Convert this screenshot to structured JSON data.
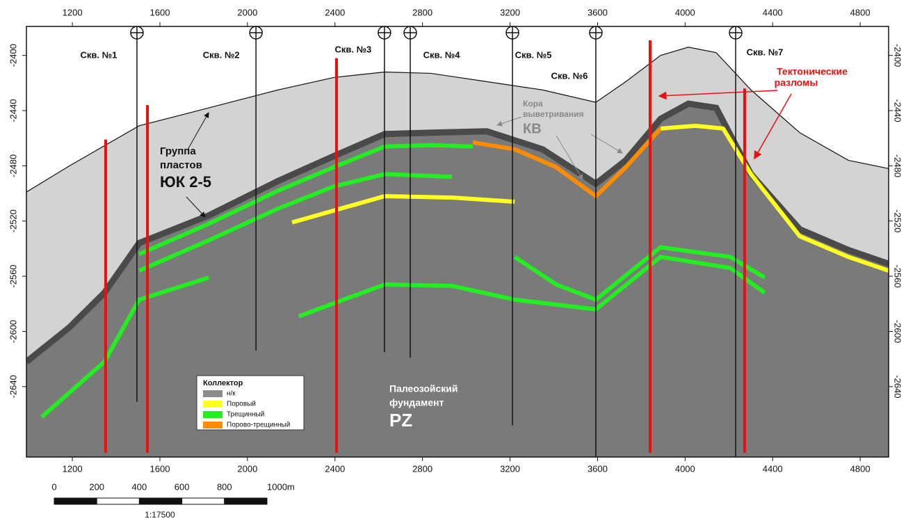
{
  "chart_data": {
    "type": "cross-section",
    "xlim": [
      990,
      4930
    ],
    "ylim": [
      -2691,
      -2379
    ],
    "xticks": [
      1200,
      1600,
      2000,
      2400,
      2800,
      3200,
      3600,
      4000,
      4400,
      4800
    ],
    "yticks": [
      -2400,
      -2440,
      -2480,
      -2520,
      -2560,
      -2600,
      -2640
    ],
    "surfaces": [
      {
        "color": "#d3d3d3",
        "x": [
          990,
          1187,
          1505,
          1823,
          2140,
          2394,
          2627,
          2839,
          3094,
          3348,
          3592,
          3729,
          3888,
          4015,
          4142,
          4301,
          4524,
          4746,
          4930
        ],
        "values": [
          -2499,
          -2480,
          -2451,
          -2438,
          -2425,
          -2416,
          -2412,
          -2413,
          -2419,
          -2425,
          -2434,
          -2419,
          -2400,
          -2394,
          -2398,
          -2425,
          -2456,
          -2476,
          -2482
        ]
      },
      {
        "color": "#7a7a7a",
        "x": [
          990,
          1187,
          1346,
          1505,
          1823,
          2140,
          2394,
          2627,
          2839,
          3094,
          3348,
          3592,
          3729,
          3888,
          4015,
          4142,
          4301,
          4524,
          4746,
          4930
        ],
        "values": [
          -2622,
          -2597,
          -2572,
          -2536,
          -2516,
          -2491,
          -2473,
          -2457,
          -2456,
          -2455,
          -2468,
          -2493,
          -2476,
          -2446,
          -2435,
          -2438,
          -2486,
          -2526,
          -2541,
          -2551
        ]
      }
    ],
    "reservoirs": [
      {
        "color": "#22ee22",
        "x": [
          1505,
          1823,
          2140,
          2394,
          2627,
          2839,
          3030
        ],
        "values": [
          -2544,
          -2522,
          -2498,
          -2481,
          -2466,
          -2465,
          -2466
        ]
      },
      {
        "color": "#22ee22",
        "x": [
          1505,
          1823,
          2140,
          2394,
          2627,
          2934
        ],
        "values": [
          -2556,
          -2534,
          -2511,
          -2495,
          -2486,
          -2488
        ]
      },
      {
        "color": "#22ee22",
        "x": [
          1060,
          1346,
          1505,
          1823
        ],
        "values": [
          -2662,
          -2622,
          -2577,
          -2561
        ]
      },
      {
        "color": "#22ee22",
        "x": [
          2235,
          2627,
          2934,
          3221,
          3592,
          3888,
          4206,
          4364
        ],
        "values": [
          -2589,
          -2566,
          -2567,
          -2577,
          -2584,
          -2546,
          -2554,
          -2572
        ]
      },
      {
        "color": "#22ee22",
        "x": [
          3221,
          3411,
          3592,
          3888,
          4206,
          4364
        ],
        "values": [
          -2546,
          -2566,
          -2577,
          -2539,
          -2546,
          -2561
        ]
      },
      {
        "color": "#ffff22",
        "x": [
          2204,
          2627,
          2934,
          3221
        ],
        "values": [
          -2521,
          -2502,
          -2503,
          -2506
        ]
      },
      {
        "color": "#ff8c00",
        "x": [
          3030,
          3221,
          3411,
          3592,
          3729,
          3888
        ],
        "values": [
          -2463,
          -2468,
          -2481,
          -2502,
          -2481,
          -2453
        ]
      },
      {
        "color": "#ffff22",
        "x": [
          3888,
          4047,
          4174,
          4301,
          4524,
          4746,
          4930
        ],
        "values": [
          -2453,
          -2451,
          -2453,
          -2486,
          -2531,
          -2546,
          -2556
        ]
      }
    ],
    "wells": [
      {
        "name": "Скв. №1",
        "x": 1495,
        "bottom": -2651
      },
      {
        "name": "Скв. №2",
        "x": 2039,
        "bottom": -2614
      },
      {
        "name": "Скв. №3",
        "x": 2626,
        "bottom": -2615
      },
      {
        "name": "Скв. №4",
        "x": 2744,
        "bottom": -2619
      },
      {
        "name": "Скв. №5",
        "x": 3211,
        "bottom": -2668
      },
      {
        "name": "Скв. №6",
        "x": 3592,
        "bottom": -2691
      },
      {
        "name": "Скв. №7",
        "x": 4231,
        "bottom": -2691
      }
    ],
    "fault_color": "#e81010",
    "faults": [
      {
        "x": 1352,
        "top": -2461,
        "bottom": -2688
      },
      {
        "x": 1543,
        "top": -2436,
        "bottom": -2688
      },
      {
        "x": 2407,
        "top": -2402,
        "bottom": -2688
      },
      {
        "x": 3840,
        "top": -2389,
        "bottom": -2688
      },
      {
        "x": 4272,
        "top": -2424,
        "bottom": -2688
      }
    ],
    "legend": {
      "title": "Коллектор",
      "items": [
        {
          "name": "н/к",
          "color": "#8c8c8c"
        },
        {
          "name": "Поровый",
          "color": "#ffff22"
        },
        {
          "name": "Трещинный",
          "color": "#22ee22"
        },
        {
          "name": "Порово-трещинный",
          "color": "#ff8c00"
        }
      ]
    },
    "annotations": {
      "group": [
        "Группа",
        "пластов",
        "ЮК 2-5"
      ],
      "crust": [
        "Кора",
        "выветривания",
        "КВ"
      ],
      "basement": [
        "Палеозойский",
        "фундамент",
        "PZ"
      ],
      "faults": [
        "Тектонические",
        "разломы"
      ]
    },
    "scale_bar": {
      "ticks": [
        0,
        200,
        400,
        600,
        800,
        {
          "value": 1000,
          "label": "1000m"
        }
      ],
      "ratio": "1:17500"
    }
  }
}
